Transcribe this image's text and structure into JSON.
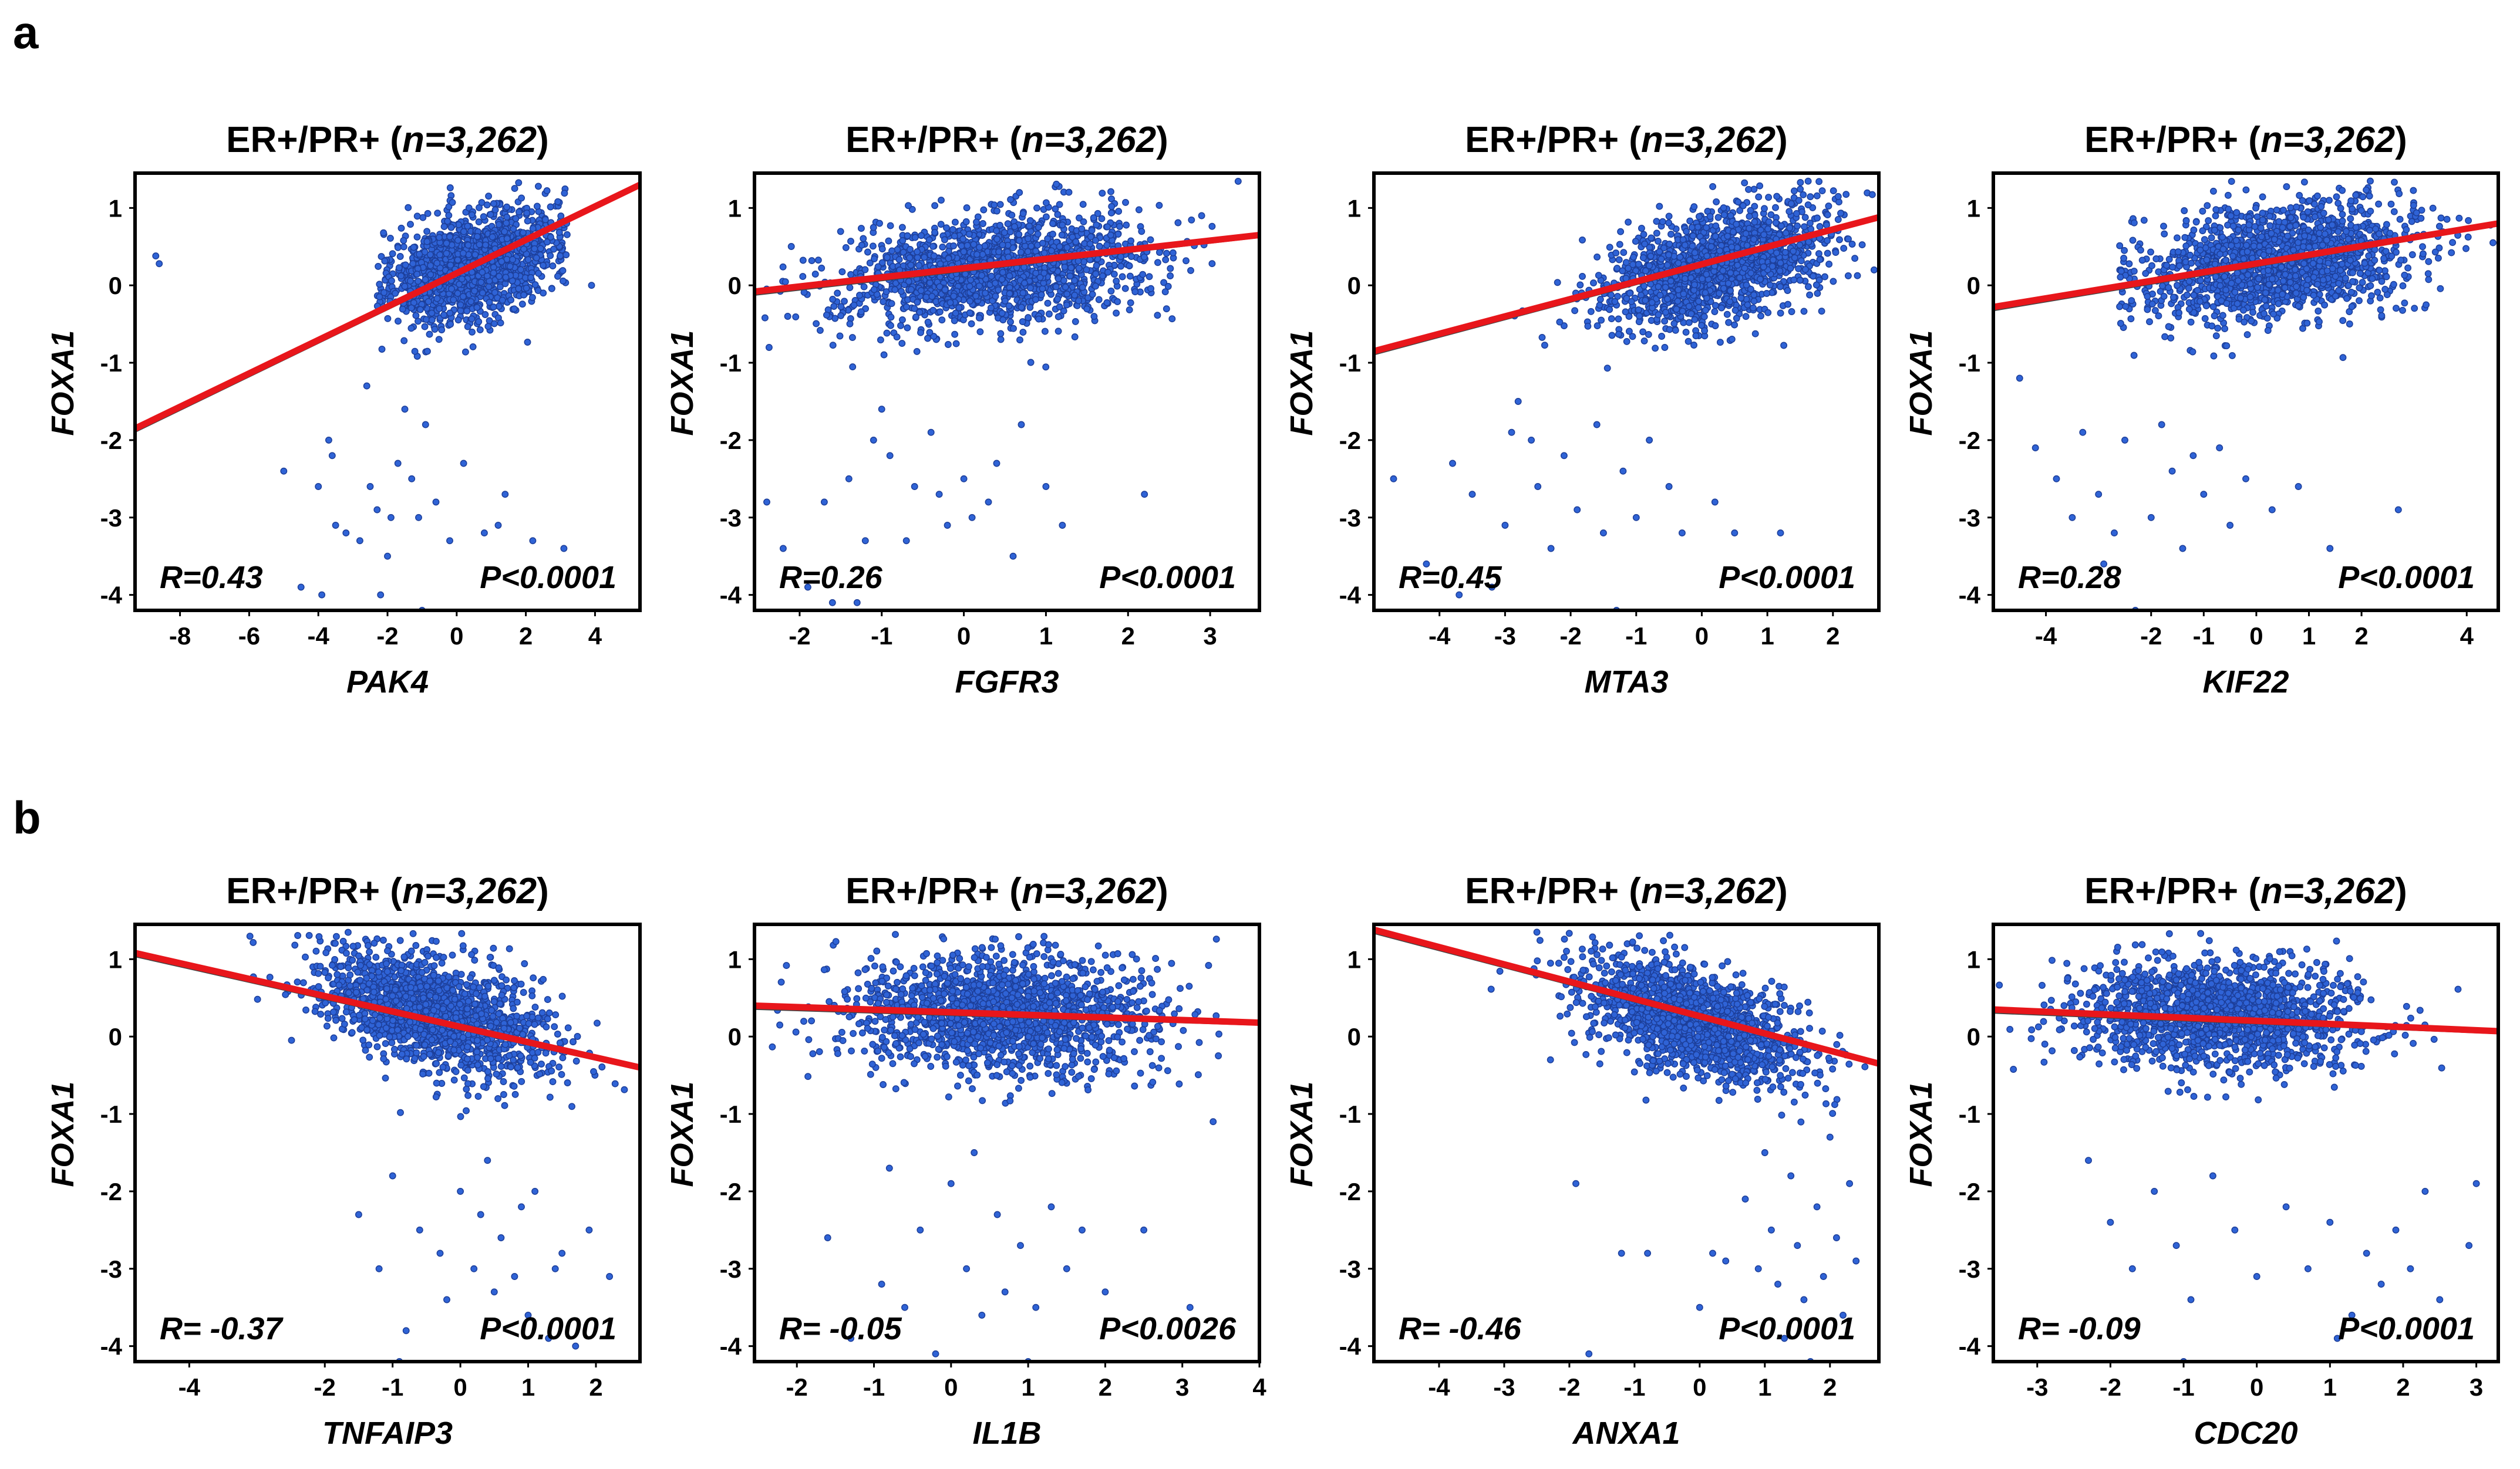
{
  "panels": [
    {
      "label": "a"
    },
    {
      "label": "b"
    }
  ],
  "chart_data": [
    {
      "type": "scatter",
      "row": 0,
      "title": "ER+/PR+ (n=3,262)",
      "title_plain": "ER+/PR+ (",
      "title_italic": "n=3,262",
      "title_close": ")",
      "xlabel": "PAK4",
      "ylabel": "FOXA1",
      "r_text": "R=0.43",
      "p_text": "P<0.0001",
      "xlim": [
        -9.3,
        5.3
      ],
      "ylim": [
        -4.2,
        1.45
      ],
      "xticks": [
        -8,
        -6,
        -4,
        -2,
        0,
        2,
        4
      ],
      "yticks": [
        1,
        0,
        -1,
        -2,
        -3,
        -4
      ],
      "fit": {
        "x0": -9.3,
        "y0": -1.85,
        "x1": 5.3,
        "y1": 1.3
      },
      "cloud": {
        "cx": 0.5,
        "sx": 1.2,
        "cy": 0.25,
        "sy": 0.33,
        "slope": 0.11,
        "xmin": -2.3,
        "xmax": 3.2,
        "n": 1500
      },
      "outliers": [
        [
          -8.7,
          0.38
        ],
        [
          -8.6,
          0.28
        ],
        [
          -3.7,
          -2.0
        ],
        [
          -3.6,
          -2.2
        ],
        [
          -4.0,
          -2.6
        ],
        [
          -3.5,
          -3.1
        ],
        [
          -4.5,
          -3.9
        ],
        [
          -3.9,
          -4.0
        ],
        [
          -3.2,
          -3.2
        ],
        [
          -2.8,
          -3.3
        ],
        [
          -2.5,
          -2.6
        ],
        [
          -2.3,
          -2.9
        ],
        [
          -2.0,
          -3.5
        ],
        [
          -1.9,
          -3.0
        ],
        [
          -1.7,
          -2.3
        ],
        [
          -1.3,
          -2.5
        ],
        [
          -1.1,
          -3.0
        ],
        [
          -1.0,
          -4.2
        ],
        [
          -0.6,
          -2.8
        ],
        [
          -0.2,
          -3.3
        ],
        [
          0.2,
          -2.3
        ],
        [
          0.8,
          -3.2
        ],
        [
          1.2,
          -3.1
        ],
        [
          1.4,
          -2.7
        ],
        [
          2.2,
          -3.3
        ],
        [
          3.1,
          -3.4
        ],
        [
          -2.2,
          -4.0
        ],
        [
          -1.5,
          -1.6
        ],
        [
          -0.9,
          -1.8
        ],
        [
          3.9,
          0.0
        ],
        [
          -5.0,
          -2.4
        ],
        [
          -2.6,
          -1.3
        ]
      ]
    },
    {
      "type": "scatter",
      "row": 0,
      "title": "ER+/PR+ (n=3,262)",
      "title_plain": "ER+/PR+ (",
      "title_italic": "n=3,262",
      "title_close": ")",
      "xlabel": "FGFR3",
      "ylabel": "FOXA1",
      "r_text": "R=0.26",
      "p_text": "P<0.0001",
      "xlim": [
        -2.55,
        3.6
      ],
      "ylim": [
        -4.2,
        1.45
      ],
      "xticks": [
        -2,
        -1,
        0,
        1,
        2,
        3
      ],
      "yticks": [
        1,
        0,
        -1,
        -2,
        -3,
        -4
      ],
      "fit": {
        "x0": -2.55,
        "y0": -0.08,
        "x1": 3.6,
        "y1": 0.65
      },
      "cloud": {
        "cx": 0.35,
        "sx": 0.95,
        "cy": 0.2,
        "sy": 0.36,
        "slope": 0.1,
        "xmin": -2.5,
        "xmax": 3.55,
        "n": 1600
      },
      "outliers": [
        [
          -2.4,
          -2.8
        ],
        [
          -2.2,
          -3.4
        ],
        [
          -1.9,
          -3.9
        ],
        [
          -1.7,
          -2.8
        ],
        [
          -1.6,
          -4.1
        ],
        [
          -1.4,
          -2.5
        ],
        [
          -1.2,
          -3.3
        ],
        [
          -1.1,
          -2.0
        ],
        [
          -0.9,
          -2.2
        ],
        [
          -0.7,
          -3.3
        ],
        [
          -0.6,
          -2.6
        ],
        [
          -0.4,
          -1.9
        ],
        [
          -0.2,
          -3.1
        ],
        [
          0.0,
          -2.5
        ],
        [
          0.3,
          -2.8
        ],
        [
          0.4,
          -2.3
        ],
        [
          0.6,
          -3.5
        ],
        [
          0.7,
          -1.8
        ],
        [
          1.0,
          -2.6
        ],
        [
          1.2,
          -3.1
        ],
        [
          2.2,
          -2.7
        ],
        [
          -1.3,
          -4.1
        ],
        [
          -0.3,
          -2.7
        ],
        [
          0.1,
          -3.0
        ],
        [
          -1.0,
          -1.6
        ]
      ]
    },
    {
      "type": "scatter",
      "row": 0,
      "title": "ER+/PR+ (n=3,262)",
      "title_plain": "ER+/PR+ (",
      "title_italic": "n=3,262",
      "title_close": ")",
      "xlabel": "MTA3",
      "ylabel": "FOXA1",
      "r_text": "R=0.45",
      "p_text": "P<0.0001",
      "xlim": [
        -5.0,
        2.7
      ],
      "ylim": [
        -4.2,
        1.45
      ],
      "xticks": [
        -4,
        -3,
        -2,
        -1,
        0,
        1,
        2
      ],
      "yticks": [
        1,
        0,
        -1,
        -2,
        -3,
        -4
      ],
      "fit": {
        "x0": -5.0,
        "y0": -0.85,
        "x1": 2.7,
        "y1": 0.88
      },
      "cloud": {
        "cx": 0.2,
        "sx": 0.85,
        "cy": 0.25,
        "sy": 0.35,
        "slope": 0.2,
        "xmin": -3.3,
        "xmax": 2.65,
        "n": 1550
      },
      "outliers": [
        [
          -4.7,
          -2.5
        ],
        [
          -4.2,
          -3.6
        ],
        [
          -3.8,
          -2.3
        ],
        [
          -3.7,
          -4.0
        ],
        [
          -3.5,
          -2.7
        ],
        [
          -3.2,
          -3.9
        ],
        [
          -3.0,
          -3.1
        ],
        [
          -2.8,
          -1.5
        ],
        [
          -2.6,
          -2.0
        ],
        [
          -2.5,
          -2.6
        ],
        [
          -2.3,
          -3.4
        ],
        [
          -2.1,
          -2.2
        ],
        [
          -1.9,
          -2.9
        ],
        [
          -1.6,
          -1.8
        ],
        [
          -1.5,
          -3.2
        ],
        [
          -1.3,
          -4.2
        ],
        [
          -1.2,
          -2.4
        ],
        [
          -1.0,
          -3.0
        ],
        [
          -0.8,
          -2.0
        ],
        [
          -0.5,
          -2.6
        ],
        [
          -0.3,
          -3.2
        ],
        [
          0.2,
          -2.8
        ],
        [
          0.5,
          -3.2
        ],
        [
          1.2,
          -3.2
        ],
        [
          -2.9,
          -1.9
        ]
      ]
    },
    {
      "type": "scatter",
      "row": 0,
      "title": "ER+/PR+ (n=3,262)",
      "title_plain": "ER+/PR+ (",
      "title_italic": "n=3,262",
      "title_close": ")",
      "xlabel": "KIF22",
      "ylabel": "FOXA1",
      "r_text": "R=0.28",
      "p_text": "P<0.0001",
      "xlim": [
        -5.0,
        4.6
      ],
      "ylim": [
        -4.2,
        1.45
      ],
      "xticks": [
        -4,
        -2,
        -1,
        0,
        1,
        2,
        4
      ],
      "yticks": [
        1,
        0,
        -1,
        -2,
        -3,
        -4
      ],
      "fit": {
        "x0": -5.0,
        "y0": -0.28,
        "x1": 4.6,
        "y1": 0.8
      },
      "cloud": {
        "cx": 0.4,
        "sx": 1.3,
        "cy": 0.3,
        "sy": 0.37,
        "slope": 0.08,
        "xmin": -2.6,
        "xmax": 4.5,
        "n": 1600
      },
      "outliers": [
        [
          -4.5,
          -1.2
        ],
        [
          -4.2,
          -2.1
        ],
        [
          -3.8,
          -2.5
        ],
        [
          -3.5,
          -3.0
        ],
        [
          -3.0,
          -2.7
        ],
        [
          -2.7,
          -3.2
        ],
        [
          -2.5,
          -2.0
        ],
        [
          -2.3,
          -4.2
        ],
        [
          -2.0,
          -3.0
        ],
        [
          -1.8,
          -1.8
        ],
        [
          -1.6,
          -2.4
        ],
        [
          -1.4,
          -3.4
        ],
        [
          -1.2,
          -2.2
        ],
        [
          -1.0,
          -2.7
        ],
        [
          -0.7,
          -2.1
        ],
        [
          -0.5,
          -3.1
        ],
        [
          -0.2,
          -2.5
        ],
        [
          0.3,
          -2.9
        ],
        [
          0.8,
          -2.6
        ],
        [
          1.4,
          -3.4
        ],
        [
          2.7,
          -2.9
        ],
        [
          -3.3,
          -1.9
        ],
        [
          -2.9,
          -3.6
        ]
      ]
    },
    {
      "type": "scatter",
      "row": 1,
      "title": "ER+/PR+ (n=3,262)",
      "title_plain": "ER+/PR+ (",
      "title_italic": "n=3,262",
      "title_close": ")",
      "xlabel": "TNFAIP3",
      "ylabel": "FOXA1",
      "r_text": "R= -0.37",
      "p_text": "P<0.0001",
      "xlim": [
        -4.8,
        2.65
      ],
      "ylim": [
        -4.2,
        1.45
      ],
      "xticks": [
        -4,
        -2,
        -1,
        0,
        1,
        2
      ],
      "yticks": [
        1,
        0,
        -1,
        -2,
        -3,
        -4
      ],
      "fit": {
        "x0": -4.8,
        "y0": 1.08,
        "x1": 2.65,
        "y1": -0.4
      },
      "cloud": {
        "cx": -0.4,
        "sx": 0.85,
        "cy": 0.3,
        "sy": 0.35,
        "slope": -0.22,
        "xmin": -3.2,
        "xmax": 2.6,
        "n": 1550
      },
      "outliers": [
        [
          -1.5,
          -2.3
        ],
        [
          -1.2,
          -3.0
        ],
        [
          -1.0,
          -1.8
        ],
        [
          -0.8,
          -3.8
        ],
        [
          -0.6,
          -2.5
        ],
        [
          -0.3,
          -2.8
        ],
        [
          -0.2,
          -3.4
        ],
        [
          0.0,
          -2.0
        ],
        [
          0.2,
          -3.0
        ],
        [
          0.3,
          -2.3
        ],
        [
          0.5,
          -3.3
        ],
        [
          0.6,
          -2.6
        ],
        [
          0.8,
          -3.1
        ],
        [
          1.0,
          -3.6
        ],
        [
          1.1,
          -2.0
        ],
        [
          1.3,
          -3.9
        ],
        [
          1.4,
          -3.0
        ],
        [
          1.7,
          -4.0
        ],
        [
          1.9,
          -2.5
        ],
        [
          2.2,
          -3.1
        ],
        [
          -0.9,
          -4.2
        ],
        [
          0.4,
          -1.6
        ],
        [
          0.9,
          -2.2
        ],
        [
          1.5,
          -2.8
        ]
      ]
    },
    {
      "type": "scatter",
      "row": 1,
      "title": "ER+/PR+ (n=3,262)",
      "title_plain": "ER+/PR+ (",
      "title_italic": "n=3,262",
      "title_close": ")",
      "xlabel": "IL1B",
      "ylabel": "FOXA1",
      "r_text": "R= -0.05",
      "p_text": "P<0.0026",
      "xlim": [
        -2.55,
        4.0
      ],
      "ylim": [
        -4.2,
        1.45
      ],
      "xticks": [
        -2,
        -1,
        0,
        1,
        2,
        3,
        4
      ],
      "yticks": [
        1,
        0,
        -1,
        -2,
        -3,
        -4
      ],
      "fit": {
        "x0": -2.55,
        "y0": 0.4,
        "x1": 4.0,
        "y1": 0.18
      },
      "cloud": {
        "cx": 0.7,
        "sx": 1.0,
        "cy": 0.3,
        "sy": 0.38,
        "slope": -0.03,
        "xmin": -2.5,
        "xmax": 3.9,
        "n": 1600
      },
      "outliers": [
        [
          -1.6,
          -2.6
        ],
        [
          -1.3,
          -3.9
        ],
        [
          -0.9,
          -3.2
        ],
        [
          -0.6,
          -3.5
        ],
        [
          -0.4,
          -2.5
        ],
        [
          -0.2,
          -4.1
        ],
        [
          0.0,
          -1.9
        ],
        [
          0.2,
          -3.0
        ],
        [
          0.4,
          -3.6
        ],
        [
          0.6,
          -2.3
        ],
        [
          0.7,
          -3.3
        ],
        [
          0.9,
          -2.7
        ],
        [
          1.1,
          -3.5
        ],
        [
          1.3,
          -2.2
        ],
        [
          1.5,
          -3.0
        ],
        [
          1.7,
          -2.5
        ],
        [
          2.0,
          -3.3
        ],
        [
          2.5,
          -2.5
        ],
        [
          3.1,
          -3.5
        ],
        [
          3.4,
          -1.1
        ],
        [
          1.0,
          -4.2
        ],
        [
          -0.8,
          -1.7
        ],
        [
          0.3,
          -1.5
        ]
      ]
    },
    {
      "type": "scatter",
      "row": 1,
      "title": "ER+/PR+ (n=3,262)",
      "title_plain": "ER+/PR+ (",
      "title_italic": "n=3,262",
      "title_close": ")",
      "xlabel": "ANXA1",
      "ylabel": "FOXA1",
      "r_text": "R= -0.46",
      "p_text": "P<0.0001",
      "xlim": [
        -5.0,
        2.75
      ],
      "ylim": [
        -4.2,
        1.45
      ],
      "xticks": [
        -4,
        -3,
        -2,
        -1,
        0,
        1,
        2
      ],
      "yticks": [
        1,
        0,
        -1,
        -2,
        -3,
        -4
      ],
      "fit": {
        "x0": -5.0,
        "y0": 1.38,
        "x1": 2.75,
        "y1": -0.35
      },
      "cloud": {
        "cx": -0.1,
        "sx": 0.85,
        "cy": 0.2,
        "sy": 0.33,
        "slope": -0.25,
        "xmin": -3.3,
        "xmax": 2.7,
        "n": 1550
      },
      "outliers": [
        [
          -1.9,
          -1.9
        ],
        [
          -1.2,
          -2.8
        ],
        [
          -0.8,
          -2.8
        ],
        [
          0.2,
          -2.8
        ],
        [
          0.4,
          -2.9
        ],
        [
          0.7,
          -2.1
        ],
        [
          0.9,
          -3.0
        ],
        [
          1.0,
          -1.5
        ],
        [
          1.1,
          -2.5
        ],
        [
          1.2,
          -3.2
        ],
        [
          1.3,
          -3.9
        ],
        [
          1.4,
          -1.8
        ],
        [
          1.5,
          -2.7
        ],
        [
          1.6,
          -3.4
        ],
        [
          1.7,
          -4.2
        ],
        [
          1.8,
          -2.2
        ],
        [
          1.9,
          -3.1
        ],
        [
          2.0,
          -1.3
        ],
        [
          2.1,
          -2.6
        ],
        [
          2.2,
          -3.6
        ],
        [
          2.3,
          -1.9
        ],
        [
          2.4,
          -2.9
        ],
        [
          -1.7,
          -4.1
        ],
        [
          0.0,
          -3.5
        ]
      ]
    },
    {
      "type": "scatter",
      "row": 1,
      "title": "ER+/PR+ (n=3,262)",
      "title_plain": "ER+/PR+ (",
      "title_italic": "n=3,262",
      "title_close": ")",
      "xlabel": "CDC20",
      "ylabel": "FOXA1",
      "r_text": "R= -0.09",
      "p_text": "P<0.0001",
      "xlim": [
        -3.6,
        3.3
      ],
      "ylim": [
        -4.2,
        1.45
      ],
      "xticks": [
        -3,
        -2,
        -1,
        0,
        1,
        2,
        3
      ],
      "yticks": [
        1,
        0,
        -1,
        -2,
        -3,
        -4
      ],
      "fit": {
        "x0": -3.6,
        "y0": 0.35,
        "x1": 3.3,
        "y1": 0.07
      },
      "cloud": {
        "cx": -0.5,
        "sx": 0.95,
        "cy": 0.28,
        "sy": 0.35,
        "slope": -0.04,
        "xmin": -3.55,
        "xmax": 3.25,
        "n": 1600
      },
      "outliers": [
        [
          -2.3,
          -1.6
        ],
        [
          -2.0,
          -2.4
        ],
        [
          -1.7,
          -3.0
        ],
        [
          -1.4,
          -2.0
        ],
        [
          -1.1,
          -2.7
        ],
        [
          -0.9,
          -3.4
        ],
        [
          -0.6,
          -1.8
        ],
        [
          -0.3,
          -2.5
        ],
        [
          0.0,
          -3.1
        ],
        [
          0.4,
          -2.2
        ],
        [
          0.7,
          -3.0
        ],
        [
          1.0,
          -2.4
        ],
        [
          1.3,
          -3.6
        ],
        [
          1.5,
          -2.8
        ],
        [
          1.7,
          -3.2
        ],
        [
          1.9,
          -2.5
        ],
        [
          2.1,
          -3.0
        ],
        [
          2.3,
          -2.0
        ],
        [
          2.5,
          -3.4
        ],
        [
          2.9,
          -2.7
        ],
        [
          3.0,
          -1.9
        ],
        [
          -1.0,
          -4.2
        ],
        [
          1.1,
          -3.9
        ]
      ]
    }
  ]
}
